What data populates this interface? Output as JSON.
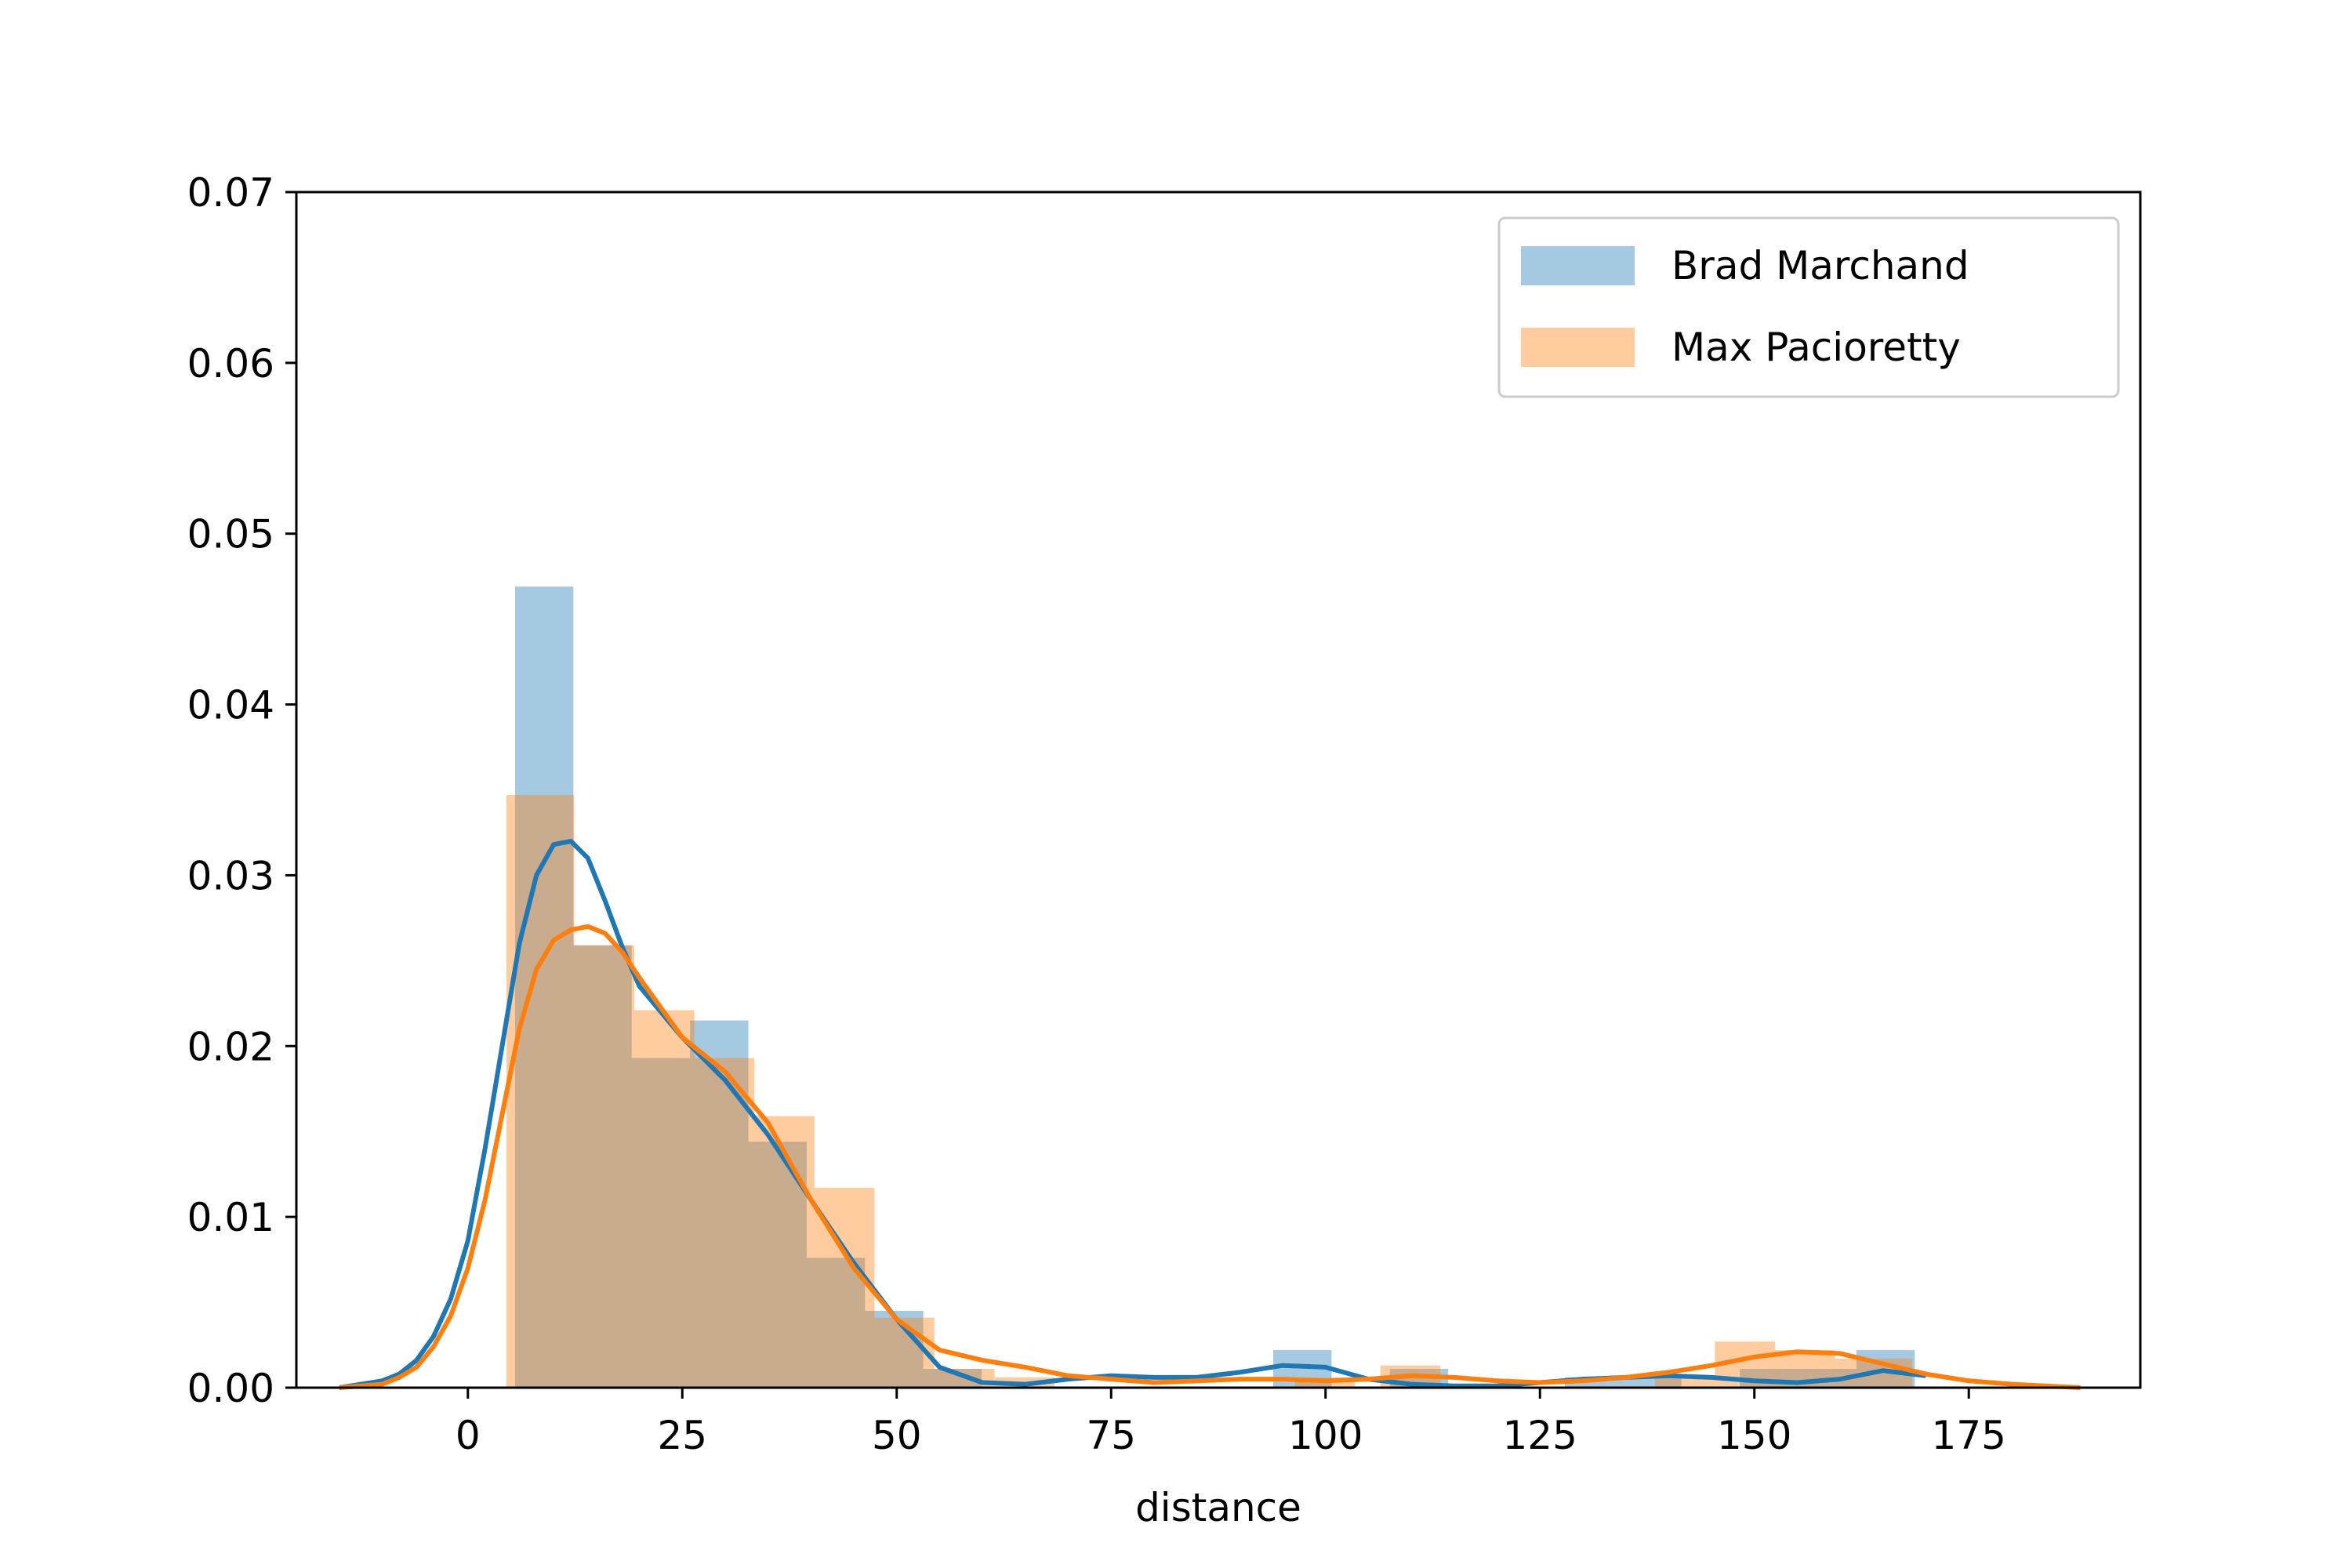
{
  "chart_data": {
    "type": "histogram",
    "title": "",
    "xlabel": "distance",
    "ylabel": "",
    "xlim": [
      -20,
      195
    ],
    "ylim": [
      0,
      0.07
    ],
    "xticks": [
      0,
      25,
      50,
      75,
      100,
      125,
      150,
      175
    ],
    "yticks": [
      0.0,
      0.01,
      0.02,
      0.03,
      0.04,
      0.05,
      0.06,
      0.07
    ],
    "xtick_labels": [
      "0",
      "25",
      "50",
      "75",
      "100",
      "125",
      "150",
      "175"
    ],
    "ytick_labels": [
      "0.00",
      "0.01",
      "0.02",
      "0.03",
      "0.04",
      "0.05",
      "0.06",
      "0.07"
    ],
    "grid": false,
    "legend_position": "top-right",
    "series": [
      {
        "name": "Brad Marchand",
        "color": "#1f77b4",
        "hist_bins": [
          {
            "x0": 5.5,
            "x1": 12.3,
            "y": 0.0469
          },
          {
            "x0": 12.3,
            "x1": 19.1,
            "y": 0.0259
          },
          {
            "x0": 19.1,
            "x1": 25.9,
            "y": 0.0193
          },
          {
            "x0": 25.9,
            "x1": 32.7,
            "y": 0.0215
          },
          {
            "x0": 32.7,
            "x1": 39.5,
            "y": 0.0144
          },
          {
            "x0": 39.5,
            "x1": 46.3,
            "y": 0.0076
          },
          {
            "x0": 46.3,
            "x1": 53.1,
            "y": 0.0045
          },
          {
            "x0": 53.1,
            "x1": 59.9,
            "y": 0.0011
          },
          {
            "x0": 93.9,
            "x1": 100.7,
            "y": 0.0022
          },
          {
            "x0": 107.5,
            "x1": 114.3,
            "y": 0.0011
          },
          {
            "x0": 127.9,
            "x1": 134.7,
            "y": 0.0006
          },
          {
            "x0": 134.7,
            "x1": 141.5,
            "y": 0.0006
          },
          {
            "x0": 148.3,
            "x1": 155.1,
            "y": 0.0011
          },
          {
            "x0": 155.1,
            "x1": 161.9,
            "y": 0.0011
          },
          {
            "x0": 161.9,
            "x1": 168.7,
            "y": 0.0022
          }
        ],
        "kde_x": [
          -15,
          -10,
          -8,
          -6,
          -4,
          -2,
          0,
          2,
          4,
          6,
          8,
          10,
          12,
          14,
          16,
          18,
          20,
          25,
          30,
          35,
          40,
          45,
          50,
          55,
          60,
          65,
          70,
          75,
          80,
          85,
          90,
          95,
          100,
          105,
          110,
          115,
          120,
          125,
          130,
          135,
          140,
          145,
          150,
          155,
          160,
          165,
          170
        ],
        "kde_y": [
          0,
          0.0004,
          0.0008,
          0.0016,
          0.003,
          0.0052,
          0.0086,
          0.014,
          0.02,
          0.026,
          0.03,
          0.0318,
          0.032,
          0.031,
          0.0285,
          0.0258,
          0.0235,
          0.0205,
          0.018,
          0.0148,
          0.011,
          0.0073,
          0.004,
          0.0012,
          0.0003,
          0.0002,
          0.0005,
          0.0007,
          0.0006,
          0.0006,
          0.0009,
          0.0013,
          0.0012,
          0.0005,
          0.0002,
          0.0001,
          0.0001,
          0.0003,
          0.0005,
          0.0006,
          0.0007,
          0.0006,
          0.0004,
          0.0003,
          0.0005,
          0.001,
          0.0007
        ]
      },
      {
        "name": "Max Pacioretty",
        "color": "#ff7f0e",
        "hist_bins": [
          {
            "x0": 4.5,
            "x1": 12.4,
            "y": 0.0347
          },
          {
            "x0": 12.4,
            "x1": 19.4,
            "y": 0.0259
          },
          {
            "x0": 19.4,
            "x1": 26.4,
            "y": 0.0221
          },
          {
            "x0": 26.4,
            "x1": 33.4,
            "y": 0.0193
          },
          {
            "x0": 33.4,
            "x1": 40.4,
            "y": 0.0159
          },
          {
            "x0": 40.4,
            "x1": 47.4,
            "y": 0.0117
          },
          {
            "x0": 47.4,
            "x1": 54.4,
            "y": 0.0041
          },
          {
            "x0": 54.4,
            "x1": 61.4,
            "y": 0.0011
          },
          {
            "x0": 61.4,
            "x1": 68.4,
            "y": 0.0006
          },
          {
            "x0": 96.4,
            "x1": 103.4,
            "y": 0.0006
          },
          {
            "x0": 106.4,
            "x1": 113.4,
            "y": 0.0013
          },
          {
            "x0": 138.4,
            "x1": 145.4,
            "y": 0.0006
          },
          {
            "x0": 145.4,
            "x1": 152.4,
            "y": 0.0027
          },
          {
            "x0": 152.4,
            "x1": 159.4,
            "y": 0.0022
          },
          {
            "x0": 159.4,
            "x1": 168.4,
            "y": 0.0017
          }
        ],
        "kde_x": [
          -15,
          -10,
          -8,
          -6,
          -4,
          -2,
          0,
          2,
          4,
          6,
          8,
          10,
          12,
          14,
          16,
          18,
          20,
          25,
          30,
          35,
          40,
          45,
          50,
          55,
          60,
          65,
          70,
          75,
          80,
          85,
          90,
          95,
          100,
          105,
          110,
          115,
          120,
          125,
          130,
          135,
          140,
          145,
          150,
          155,
          160,
          165,
          170,
          175,
          180,
          188
        ],
        "kde_y": [
          0,
          0.0002,
          0.0006,
          0.0012,
          0.0024,
          0.0042,
          0.007,
          0.011,
          0.016,
          0.021,
          0.0245,
          0.0262,
          0.0268,
          0.027,
          0.0266,
          0.0255,
          0.024,
          0.0205,
          0.0185,
          0.0155,
          0.011,
          0.007,
          0.004,
          0.0022,
          0.0016,
          0.0012,
          0.0007,
          0.0005,
          0.0003,
          0.0004,
          0.0005,
          0.0005,
          0.0004,
          0.0005,
          0.0007,
          0.0006,
          0.0004,
          0.0003,
          0.0004,
          0.0006,
          0.0009,
          0.0013,
          0.0018,
          0.0021,
          0.002,
          0.0014,
          0.0008,
          0.0004,
          0.0002,
          0.0
        ]
      }
    ]
  }
}
